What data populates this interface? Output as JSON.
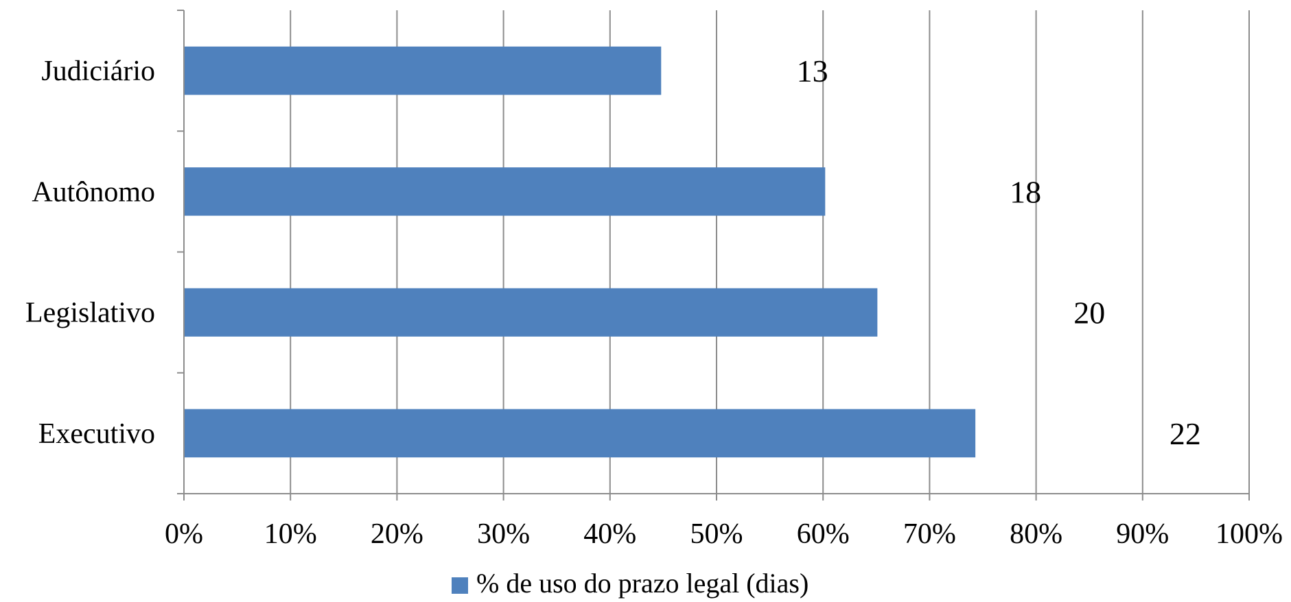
{
  "chart_data": {
    "type": "bar",
    "orientation": "horizontal",
    "categories": [
      "Executivo",
      "Legislativo",
      "Autônomo",
      "Judiciário"
    ],
    "series": [
      {
        "name": "% de uso do prazo legal (dias)",
        "values": [
          74.3,
          65.1,
          60.2,
          44.8
        ],
        "data_labels": [
          "22",
          "20",
          "18",
          "13"
        ],
        "data_label_positions": [
          94,
          85,
          79,
          59
        ]
      }
    ],
    "xlim": [
      0,
      100
    ],
    "x_ticks": [
      "0%",
      "10%",
      "20%",
      "30%",
      "40%",
      "50%",
      "60%",
      "70%",
      "80%",
      "90%",
      "100%"
    ],
    "grid": "vertical",
    "legend": "bottom",
    "bar_color": "#4f81bd"
  }
}
